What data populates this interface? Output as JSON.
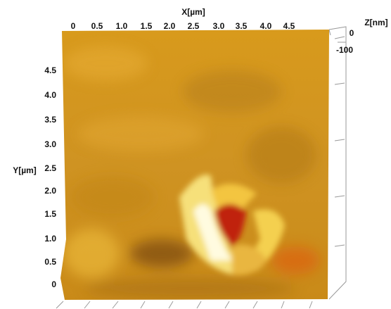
{
  "x_axis": {
    "label": "X[µm]",
    "ticks": [
      "0",
      "0.5",
      "1.0",
      "1.5",
      "2.0",
      "2.5",
      "3.0",
      "3.5",
      "4.0",
      "4.5"
    ]
  },
  "y_axis": {
    "label": "Y[µm]",
    "ticks": [
      "4.5",
      "4.0",
      "3.5",
      "3.0",
      "2.5",
      "2.0",
      "1.5",
      "1.0",
      "0.5",
      "0"
    ]
  },
  "z_axis": {
    "label": "Z[nm]",
    "ticks": [
      "0",
      "-100"
    ]
  }
}
